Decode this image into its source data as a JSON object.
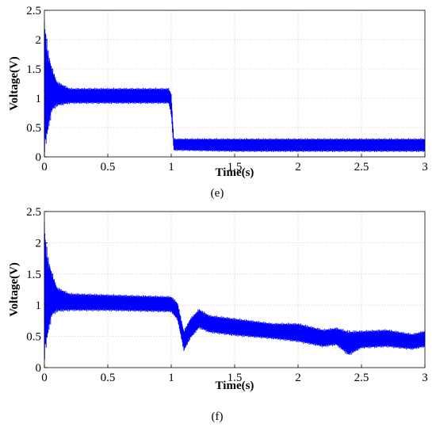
{
  "chart_data": [
    {
      "type": "line",
      "panel": "(e)",
      "xlabel": "Time(s)",
      "ylabel": "Voltage(V)",
      "xlim": [
        0,
        3
      ],
      "ylim": [
        0,
        2.5
      ],
      "xticks": [
        0,
        0.5,
        1,
        1.5,
        2,
        2.5,
        3
      ],
      "xtick_labels": [
        "0",
        "0.5",
        "1",
        "1.5",
        "2",
        "2.5",
        "3"
      ],
      "yticks": [
        0,
        0.5,
        1,
        1.5,
        2,
        2.5
      ],
      "ytick_labels": [
        "0",
        "0.5",
        "1",
        "1.5",
        "2",
        "2.5"
      ],
      "grid": true,
      "color": "#0000ff",
      "envelope": {
        "x": [
          0,
          0.01,
          0.03,
          0.06,
          0.1,
          0.2,
          0.5,
          0.98,
          1.0,
          1.02,
          1.5,
          2.0,
          2.5,
          3.0
        ],
        "upper": [
          2.5,
          2.2,
          1.85,
          1.55,
          1.3,
          1.18,
          1.18,
          1.18,
          1.1,
          0.32,
          0.32,
          0.32,
          0.32,
          0.32
        ],
        "lower": [
          0.05,
          0.1,
          0.4,
          0.75,
          0.85,
          0.9,
          0.9,
          0.9,
          0.7,
          0.1,
          0.08,
          0.08,
          0.08,
          0.08
        ]
      }
    },
    {
      "type": "line",
      "panel": "(f)",
      "xlabel": "Time(s)",
      "ylabel": "Voltage(V)",
      "xlim": [
        0,
        3
      ],
      "ylim": [
        0,
        2.5
      ],
      "xticks": [
        0,
        0.5,
        1,
        1.5,
        2,
        2.5,
        3
      ],
      "xtick_labels": [
        "0",
        "0.5",
        "1",
        "1.5",
        "2",
        "2.5",
        "3"
      ],
      "yticks": [
        0,
        0.5,
        1,
        1.5,
        2,
        2.5
      ],
      "ytick_labels": [
        "0",
        "0.5",
        "1",
        "1.5",
        "2",
        "2.5"
      ],
      "grid": true,
      "color": "#0000ff",
      "envelope": {
        "x": [
          0,
          0.01,
          0.03,
          0.06,
          0.1,
          0.2,
          0.5,
          1.0,
          1.05,
          1.1,
          1.15,
          1.22,
          1.3,
          1.5,
          1.8,
          2.0,
          2.2,
          2.3,
          2.4,
          2.5,
          2.7,
          2.9,
          3.0
        ],
        "upper": [
          2.5,
          2.1,
          1.8,
          1.55,
          1.3,
          1.2,
          1.18,
          1.15,
          1.05,
          0.6,
          0.8,
          0.95,
          0.85,
          0.8,
          0.72,
          0.72,
          0.62,
          0.65,
          0.6,
          0.6,
          0.62,
          0.55,
          0.6
        ],
        "lower": [
          0.1,
          0.2,
          0.5,
          0.8,
          0.88,
          0.9,
          0.9,
          0.88,
          0.75,
          0.25,
          0.45,
          0.62,
          0.55,
          0.5,
          0.45,
          0.4,
          0.32,
          0.35,
          0.18,
          0.3,
          0.32,
          0.28,
          0.32
        ]
      }
    }
  ],
  "captions": [
    "(e)",
    "(f)"
  ]
}
